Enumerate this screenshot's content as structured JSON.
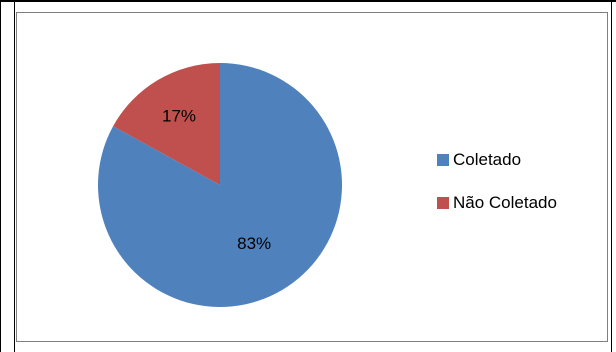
{
  "chart_data": {
    "type": "pie",
    "title": "",
    "slices": [
      {
        "label": "Coletado",
        "value": 83,
        "display": "83%",
        "color": "#4F81BD"
      },
      {
        "label": "Não Coletado",
        "value": 17,
        "display": "17%",
        "color": "#C0504D"
      }
    ],
    "legend_placement": "right"
  }
}
